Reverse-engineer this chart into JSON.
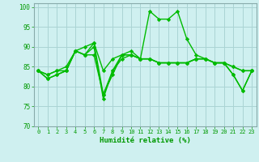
{
  "title": "",
  "xlabel": "Humidité relative (%)",
  "ylabel": "",
  "background_color": "#cff0f0",
  "grid_color": "#aad4d4",
  "line_color": "#00bb00",
  "marker": "D",
  "markersize": 2.2,
  "linewidth": 1.0,
  "ylim": [
    70,
    101
  ],
  "yticks": [
    70,
    75,
    80,
    85,
    90,
    95,
    100
  ],
  "xlim": [
    -0.5,
    23.5
  ],
  "xticks": [
    0,
    1,
    2,
    3,
    4,
    5,
    6,
    7,
    8,
    9,
    10,
    11,
    12,
    13,
    14,
    15,
    16,
    17,
    18,
    19,
    20,
    21,
    22,
    23
  ],
  "series": [
    [
      84,
      82,
      83,
      84,
      89,
      90,
      91,
      78,
      83,
      88,
      89,
      87,
      87,
      86,
      86,
      86,
      86,
      87,
      87,
      86,
      86,
      85,
      84,
      84
    ],
    [
      84,
      83,
      84,
      85,
      89,
      88,
      88,
      78,
      84,
      88,
      88,
      87,
      99,
      97,
      97,
      99,
      92,
      88,
      87,
      86,
      86,
      83,
      79,
      84
    ],
    [
      84,
      83,
      84,
      84,
      89,
      88,
      91,
      84,
      87,
      88,
      88,
      87,
      87,
      86,
      86,
      86,
      86,
      87,
      87,
      86,
      86,
      85,
      84,
      84
    ],
    [
      84,
      82,
      83,
      84,
      89,
      88,
      90,
      77,
      84,
      87,
      88,
      87,
      87,
      86,
      86,
      86,
      86,
      87,
      87,
      86,
      86,
      83,
      79,
      84
    ]
  ]
}
